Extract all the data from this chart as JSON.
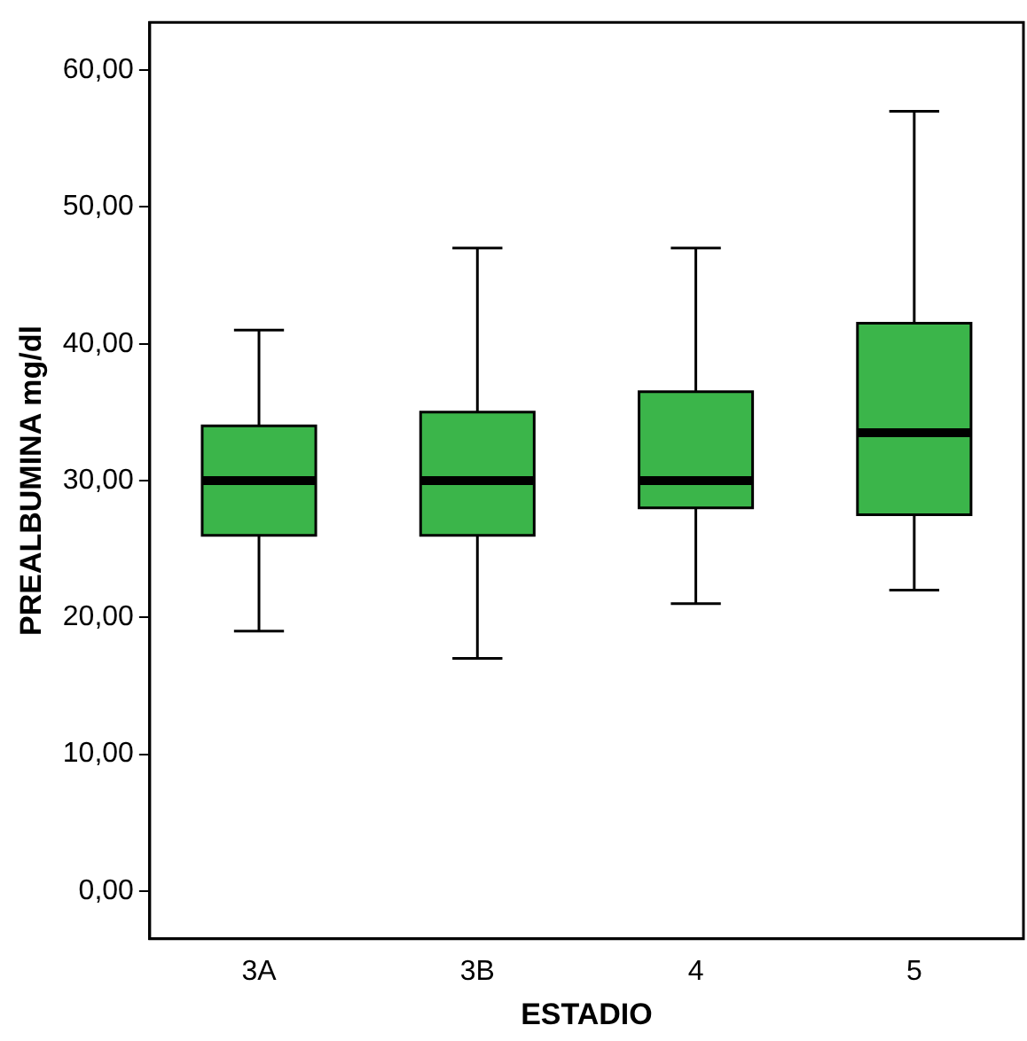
{
  "chart_data": {
    "type": "box",
    "xlabel": "ESTADIO",
    "ylabel": "PREALBUMINA mg/dl",
    "categories": [
      "3A",
      "3B",
      "4",
      "5"
    ],
    "color": "#3bb54a",
    "boxes": [
      {
        "low": 19,
        "q1": 26,
        "median": 30,
        "q3": 34,
        "high": 41
      },
      {
        "low": 17,
        "q1": 26,
        "median": 30,
        "q3": 35,
        "high": 47
      },
      {
        "low": 21,
        "q1": 28,
        "median": 30,
        "q3": 36.5,
        "high": 47
      },
      {
        "low": 22,
        "q1": 27.5,
        "median": 33.5,
        "q3": 41.5,
        "high": 57
      }
    ],
    "ylim": [
      -3.5,
      63.5
    ],
    "yticks": [
      {
        "value": 0,
        "label": "0,00"
      },
      {
        "value": 10,
        "label": "10,00"
      },
      {
        "value": 20,
        "label": "20,00"
      },
      {
        "value": 30,
        "label": "30,00"
      },
      {
        "value": 40,
        "label": "40,00"
      },
      {
        "value": 50,
        "label": "50,00"
      },
      {
        "value": 60,
        "label": "60,00"
      }
    ],
    "grid": false,
    "legend": false
  }
}
